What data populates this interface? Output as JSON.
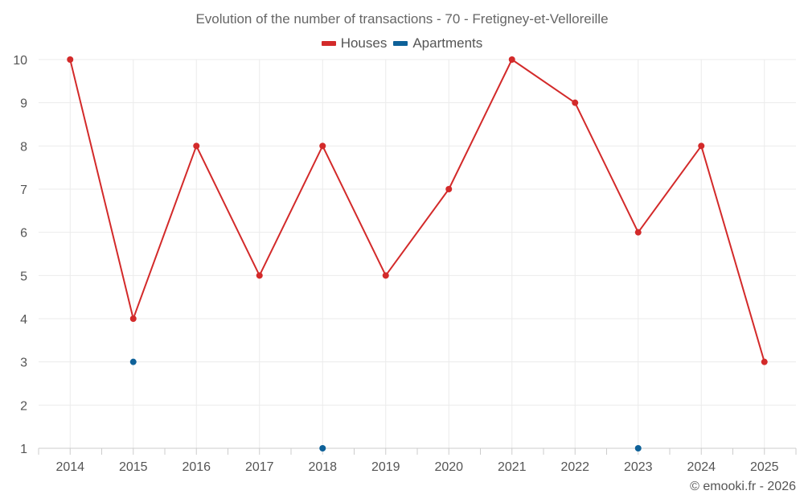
{
  "chart_data": {
    "type": "line",
    "title": "Evolution of the number of transactions - 70 - Fretigney-et-Velloreille",
    "categories": [
      "2014",
      "2015",
      "2016",
      "2017",
      "2018",
      "2019",
      "2020",
      "2021",
      "2022",
      "2023",
      "2024",
      "2025"
    ],
    "ylim": [
      1,
      10
    ],
    "yticks": [
      1,
      2,
      3,
      4,
      5,
      6,
      7,
      8,
      9,
      10
    ],
    "grid": true,
    "legend_position": "top-center",
    "series": [
      {
        "name": "Houses",
        "color": "#d32a2a",
        "line": true,
        "values": [
          10,
          4,
          8,
          5,
          8,
          5,
          7,
          10,
          9,
          6,
          8,
          3
        ]
      },
      {
        "name": "Apartments",
        "color": "#0e6199",
        "line": false,
        "values": [
          null,
          3,
          null,
          null,
          1,
          null,
          null,
          null,
          null,
          1,
          null,
          null
        ]
      }
    ],
    "xlabel": "",
    "ylabel": ""
  },
  "credit": "© emooki.fr - 2026"
}
